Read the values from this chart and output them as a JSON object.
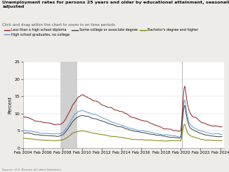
{
  "title": "Unemployment rates for persons 25 years and older by educational attainment, seasonally\nadjusted",
  "subtitle": "Click and drag within the chart to zoom in on time periods",
  "ylabel": "Percent",
  "source": "Source: U.S. Bureau of Labor Statistics.",
  "ylim": [
    0.0,
    25.0
  ],
  "yticks": [
    0.0,
    5.0,
    10.0,
    15.0,
    20.0,
    25.0
  ],
  "x_start_year": 2004,
  "x_end_year": 2024,
  "xtick_years": [
    2004,
    2006,
    2008,
    2010,
    2012,
    2014,
    2016,
    2018,
    2020,
    2022,
    2024
  ],
  "recession1": [
    2007.83,
    2009.5
  ],
  "recession2_line": 2020.08,
  "legend": [
    {
      "label": "Less than a high school diploma",
      "color": "#8B2020",
      "ls": "-"
    },
    {
      "label": "High school graduates, no college",
      "color": "#5b9bd5",
      "ls": "-"
    },
    {
      "label": "Some college or associate degree",
      "color": "#404040",
      "ls": "-"
    },
    {
      "label": "Bachelor's degree and higher",
      "color": "#7f7f00",
      "ls": "-"
    }
  ],
  "background_color": "#eeece8",
  "plot_bg": "#ffffff"
}
